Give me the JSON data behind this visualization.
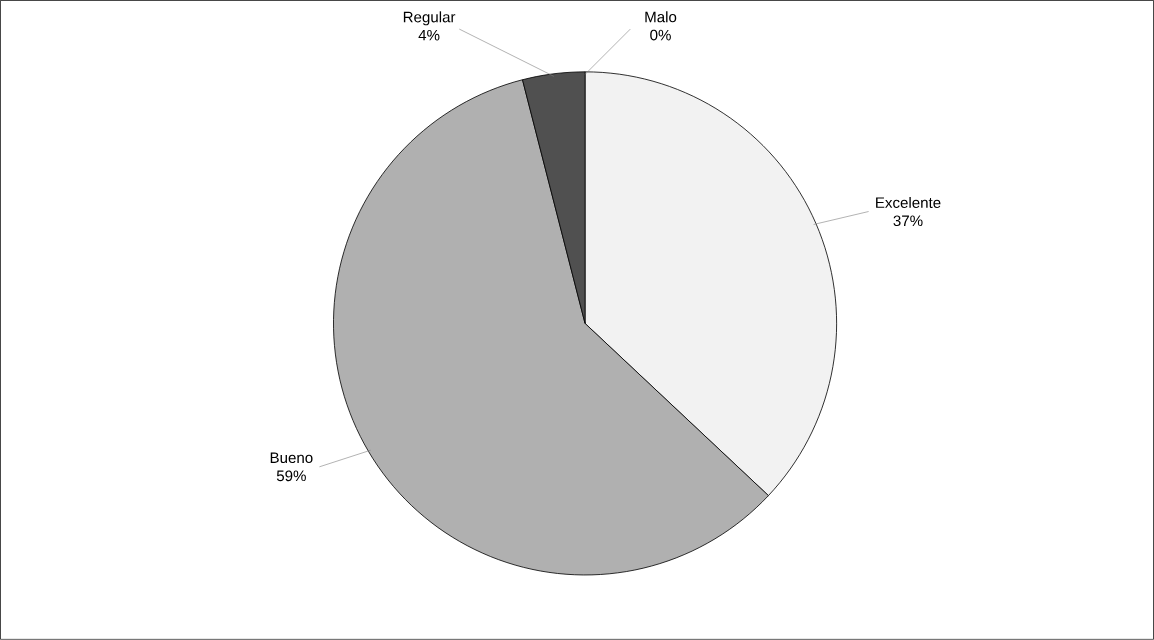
{
  "chart_data": {
    "type": "pie",
    "categories": [
      "Excelente",
      "Bueno",
      "Regular",
      "Malo"
    ],
    "values": [
      37,
      59,
      4,
      0
    ],
    "colors": [
      "#f2f2f2",
      "#b0b0b0",
      "#505050",
      "#000000"
    ],
    "value_labels": [
      "37%",
      "59%",
      "4%",
      "0%"
    ]
  }
}
